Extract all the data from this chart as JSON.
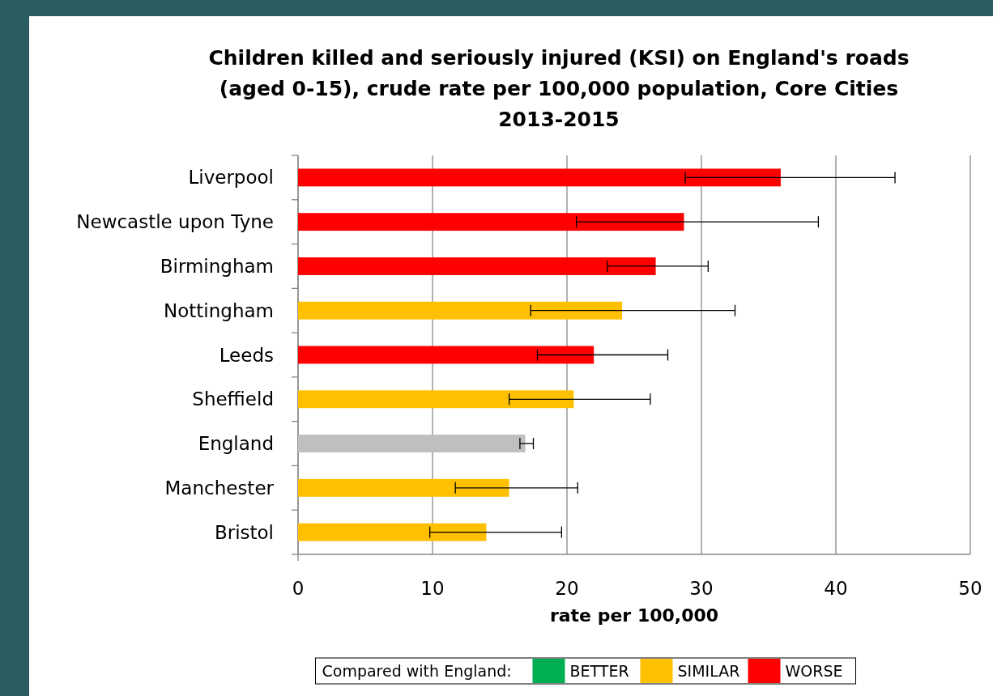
{
  "chart_data": {
    "type": "bar",
    "orientation": "horizontal",
    "title": "Children killed and seriously injured (KSI) on England's roads (aged 0-15), crude rate per 100,000 population, Core Cities 2013-2015",
    "xlabel": "rate per 100,000",
    "legend_title": "Compared with England:",
    "legend": "bottom",
    "grid": "x",
    "categories": [
      "Liverpool",
      "Newcastle upon Tyne",
      "Birmingham",
      "Nottingham",
      "Leeds",
      "Sheffield",
      "England",
      "Manchester",
      "Bristol"
    ],
    "xlim": [
      0,
      50
    ],
    "xticks": [
      0,
      10,
      20,
      30,
      40,
      50
    ],
    "series": [
      {
        "name": "BETTER",
        "color": "#00b050",
        "values": [
          null,
          null,
          null,
          null,
          null,
          null,
          null,
          null,
          null
        ],
        "errors": [
          null,
          null,
          null,
          null,
          null,
          null,
          null,
          null,
          null
        ]
      },
      {
        "name": "SIMILAR",
        "color": "#ffc000",
        "values": [
          null,
          null,
          null,
          24.1,
          null,
          20.5,
          null,
          15.7,
          14.0
        ],
        "errors": [
          null,
          null,
          null,
          [
            17.3,
            32.5
          ],
          null,
          [
            15.7,
            26.2
          ],
          null,
          [
            11.7,
            20.8
          ],
          [
            9.8,
            19.6
          ]
        ]
      },
      {
        "name": "WORSE",
        "color": "#ff0000",
        "values": [
          35.9,
          28.7,
          26.6,
          null,
          22.0,
          null,
          null,
          null,
          null
        ],
        "errors": [
          [
            28.8,
            44.4
          ],
          [
            20.7,
            38.7
          ],
          [
            23.0,
            30.5
          ],
          null,
          [
            17.8,
            27.5
          ],
          null,
          null,
          null,
          null
        ]
      },
      {
        "color": "#bfbfbf",
        "values": [
          null,
          null,
          null,
          null,
          null,
          null,
          16.9,
          null,
          null
        ],
        "errors": [
          null,
          null,
          null,
          null,
          null,
          null,
          [
            16.5,
            17.5
          ],
          null,
          null
        ]
      }
    ]
  }
}
